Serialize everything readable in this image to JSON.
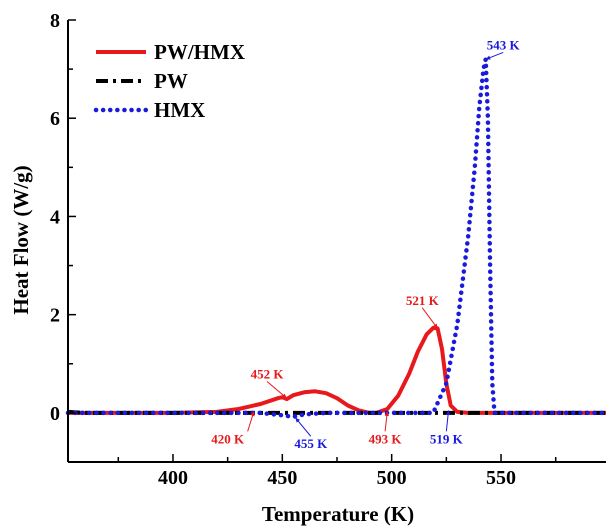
{
  "chart_data": {
    "type": "line",
    "xlabel": "Temperature (K)",
    "ylabel": "Heat Flow (W/g)",
    "xlim": [
      352,
      598
    ],
    "ylim": [
      -1,
      8
    ],
    "x_ticks": [
      400,
      450,
      500,
      550
    ],
    "y_ticks": [
      0,
      2,
      4,
      6,
      8
    ],
    "legend_position": "top-left",
    "series": [
      {
        "name": "PW/HMX",
        "color": "#e8191c",
        "style": "solid",
        "x": [
          352,
          400,
          420,
          430,
          440,
          448,
          450,
          452,
          455,
          460,
          465,
          470,
          475,
          480,
          485,
          490,
          493,
          498,
          503,
          508,
          512,
          516,
          519,
          521,
          523,
          525,
          527,
          530,
          535,
          545,
          560,
          580,
          598
        ],
        "y": [
          0.0,
          0.0,
          0.02,
          0.08,
          0.18,
          0.3,
          0.32,
          0.28,
          0.36,
          0.42,
          0.44,
          0.4,
          0.3,
          0.15,
          0.05,
          0.0,
          0.0,
          0.08,
          0.35,
          0.8,
          1.25,
          1.6,
          1.73,
          1.72,
          1.3,
          0.6,
          0.15,
          0.02,
          0.0,
          0.0,
          0.0,
          0.0,
          0.0
        ]
      },
      {
        "name": "PW",
        "color": "#000000",
        "style": "dashdot",
        "x": [
          352,
          360,
          380,
          400,
          420,
          440,
          450,
          460,
          480,
          500,
          520,
          540,
          560,
          580,
          598
        ],
        "y": [
          0.02,
          0.0,
          0.0,
          0.0,
          0.0,
          0.0,
          0.0,
          0.0,
          0.0,
          0.0,
          0.0,
          0.0,
          0.0,
          0.0,
          0.0
        ]
      },
      {
        "name": "HMX",
        "color": "#1a1adf",
        "style": "dotted",
        "x": [
          352,
          400,
          440,
          450,
          455,
          460,
          470,
          490,
          510,
          519,
          525,
          530,
          535,
          538,
          540,
          542,
          543,
          544,
          545,
          546,
          547,
          550,
          560,
          580,
          598
        ],
        "y": [
          0.0,
          0.0,
          0.0,
          -0.05,
          -0.08,
          -0.03,
          0.0,
          0.0,
          0.0,
          0.0,
          0.6,
          1.8,
          3.6,
          5.0,
          6.2,
          7.0,
          7.2,
          6.0,
          3.0,
          0.6,
          0.0,
          0.0,
          0.0,
          0.0,
          0.0
        ]
      }
    ],
    "annotations": [
      {
        "text": "543 K",
        "color": "#1a1adf",
        "point": [
          543,
          7.2
        ],
        "label": [
          551,
          7.4
        ]
      },
      {
        "text": "521 K",
        "color": "#e8191c",
        "point": [
          521,
          1.72
        ],
        "label": [
          514,
          2.2
        ]
      },
      {
        "text": "452 K",
        "color": "#e8191c",
        "point": [
          452,
          0.3
        ],
        "label": [
          443,
          0.7
        ]
      },
      {
        "text": "420 K",
        "color": "#e8191c",
        "point": [
          437,
          0.03
        ],
        "label": [
          425,
          -0.62
        ]
      },
      {
        "text": "455 K",
        "color": "#1a1adf",
        "point": [
          456,
          -0.1
        ],
        "label": [
          463,
          -0.72
        ]
      },
      {
        "text": "493 K",
        "color": "#e8191c",
        "point": [
          498,
          0.03
        ],
        "label": [
          497,
          -0.62
        ]
      },
      {
        "text": "519 K",
        "color": "#1a1adf",
        "point": [
          526,
          0.05
        ],
        "label": [
          525,
          -0.62
        ]
      }
    ]
  }
}
